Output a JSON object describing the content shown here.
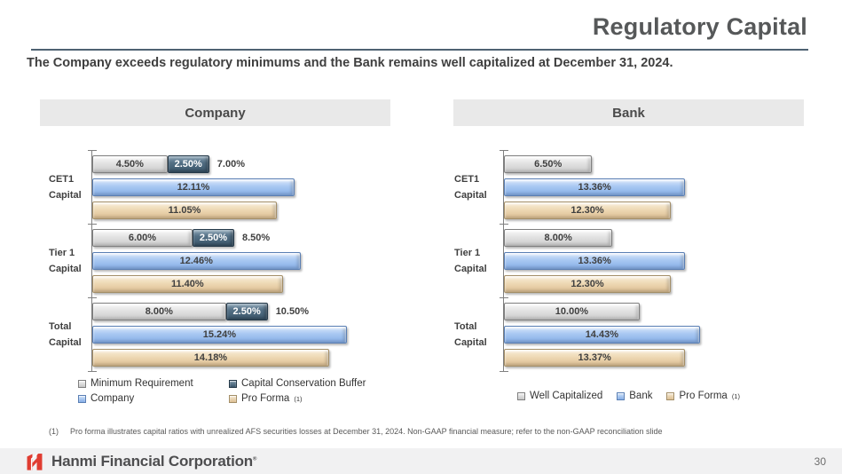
{
  "header": {
    "title": "Regulatory Capital"
  },
  "subtitle": "The Company exceeds regulatory minimums and the Bank remains well capitalized at December 31, 2024.",
  "panels": [
    {
      "header": "Company",
      "legend": [
        {
          "label": "Minimum Requirement",
          "color": "gray"
        },
        {
          "label": "Capital Conservation Buffer",
          "color": "slate"
        },
        {
          "label": "Company",
          "color": "blue"
        },
        {
          "label": "Pro Forma",
          "color": "tan",
          "sup": "(1)"
        }
      ]
    },
    {
      "header": "Bank",
      "legend": [
        {
          "label": "Well Capitalized",
          "color": "gray"
        },
        {
          "label": "Bank",
          "color": "blue"
        },
        {
          "label": "Pro Forma",
          "color": "tan",
          "sup": "(1)"
        }
      ]
    }
  ],
  "chart_data": [
    {
      "type": "bar",
      "orientation": "horizontal",
      "title": "Company",
      "categories": [
        "CET1 Capital",
        "Tier 1 Capital",
        "Total Capital"
      ],
      "series": [
        {
          "name": "Minimum Requirement",
          "role": "stack",
          "color": "gray",
          "values": [
            4.5,
            6.0,
            8.0
          ]
        },
        {
          "name": "Capital Conservation Buffer",
          "role": "stack",
          "color": "slate",
          "values": [
            2.5,
            2.5,
            2.5
          ]
        },
        {
          "name": "Company",
          "role": "bar",
          "color": "blue",
          "values": [
            12.11,
            12.46,
            15.24
          ]
        },
        {
          "name": "Pro Forma",
          "role": "bar",
          "color": "tan",
          "values": [
            11.05,
            11.4,
            14.18
          ]
        }
      ],
      "stack_total_labels": [
        "7.00%",
        "8.50%",
        "10.50%"
      ],
      "xlim": [
        0,
        19.5
      ],
      "value_suffix": "%",
      "grid": false,
      "legend_position": "bottom"
    },
    {
      "type": "bar",
      "orientation": "horizontal",
      "title": "Bank",
      "categories": [
        "CET1 Capital",
        "Tier 1 Capital",
        "Total Capital"
      ],
      "series": [
        {
          "name": "Well Capitalized",
          "role": "stack",
          "color": "gray",
          "values": [
            6.5,
            8.0,
            10.0
          ]
        },
        {
          "name": "Bank",
          "role": "bar",
          "color": "blue",
          "values": [
            13.36,
            13.36,
            14.43
          ]
        },
        {
          "name": "Pro Forma",
          "role": "bar",
          "color": "tan",
          "values": [
            12.3,
            12.3,
            13.37
          ]
        }
      ],
      "stack_total_labels": null,
      "xlim": [
        0,
        24
      ],
      "value_suffix": "%",
      "grid": false,
      "legend_position": "bottom"
    }
  ],
  "colors": {
    "bar_gray": "#d9d9d9",
    "bar_slate": "#4f6b80",
    "bar_blue": "#a3c4f0",
    "bar_tan": "#ecd7b4",
    "accent_red": "#e03c31",
    "rule": "#4e6272",
    "panel_header_bg": "#e9e9e9"
  },
  "footnote": {
    "marker": "(1)",
    "text": "Pro forma illustrates capital ratios with unrealized AFS securities losses at December 31, 2024. Non-GAAP financial measure; refer to the non-GAAP reconciliation slide"
  },
  "footer": {
    "company": "Hanmi Financial Corporation",
    "trademark": "®",
    "page_number": "30"
  }
}
